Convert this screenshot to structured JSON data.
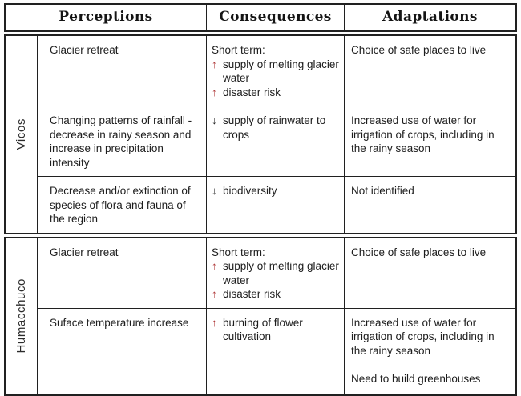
{
  "header": {
    "columns": [
      "Perceptions",
      "Consequences",
      "Adaptations"
    ]
  },
  "groups": [
    {
      "label": "Vicos",
      "rows": [
        {
          "perception": "Glacier retreat",
          "consequence_intro": "Short term:",
          "consequence_items": [
            {
              "glyph": "↑",
              "dir": "up",
              "text": "supply of melting glacier water"
            },
            {
              "glyph": "↑",
              "dir": "up",
              "text": "disaster risk"
            }
          ],
          "adaptations": [
            "Choice of safe places to live"
          ]
        },
        {
          "perception": "Changing patterns of rainfall - decrease in rainy season and increase in precipitation intensity",
          "consequence_items": [
            {
              "glyph": "↓",
              "dir": "down",
              "text": "supply of rainwater to crops"
            }
          ],
          "adaptations": [
            "Increased use of water for irrigation of crops, including in the rainy season"
          ]
        },
        {
          "perception": "Decrease and/or extinction of species of flora and fauna of the region",
          "consequence_items": [
            {
              "glyph": "↓",
              "dir": "down",
              "text": "biodiversity"
            }
          ],
          "adaptations": [
            "Not identified"
          ]
        }
      ]
    },
    {
      "label": "Humacchuco",
      "rows": [
        {
          "perception": "Glacier retreat",
          "consequence_intro": "Short term:",
          "consequence_items": [
            {
              "glyph": "↑",
              "dir": "up",
              "text": "supply of melting glacier water"
            },
            {
              "glyph": "↑",
              "dir": "up",
              "text": "disaster risk"
            }
          ],
          "adaptations": [
            "Choice of safe places to live"
          ]
        },
        {
          "perception": "Suface temperature increase",
          "consequence_items": [
            {
              "glyph": "↑",
              "dir": "up",
              "text": "burning of flower cultivation"
            }
          ],
          "adaptations": [
            "Increased use of water for irrigation of crops, including in the rainy season",
            "Need to build greenhouses"
          ]
        }
      ]
    }
  ],
  "colors": {
    "border": "#202020",
    "text": "#1d1d1d",
    "arrow_up": "#b03a3a",
    "arrow_down": "#1d1d1d"
  }
}
